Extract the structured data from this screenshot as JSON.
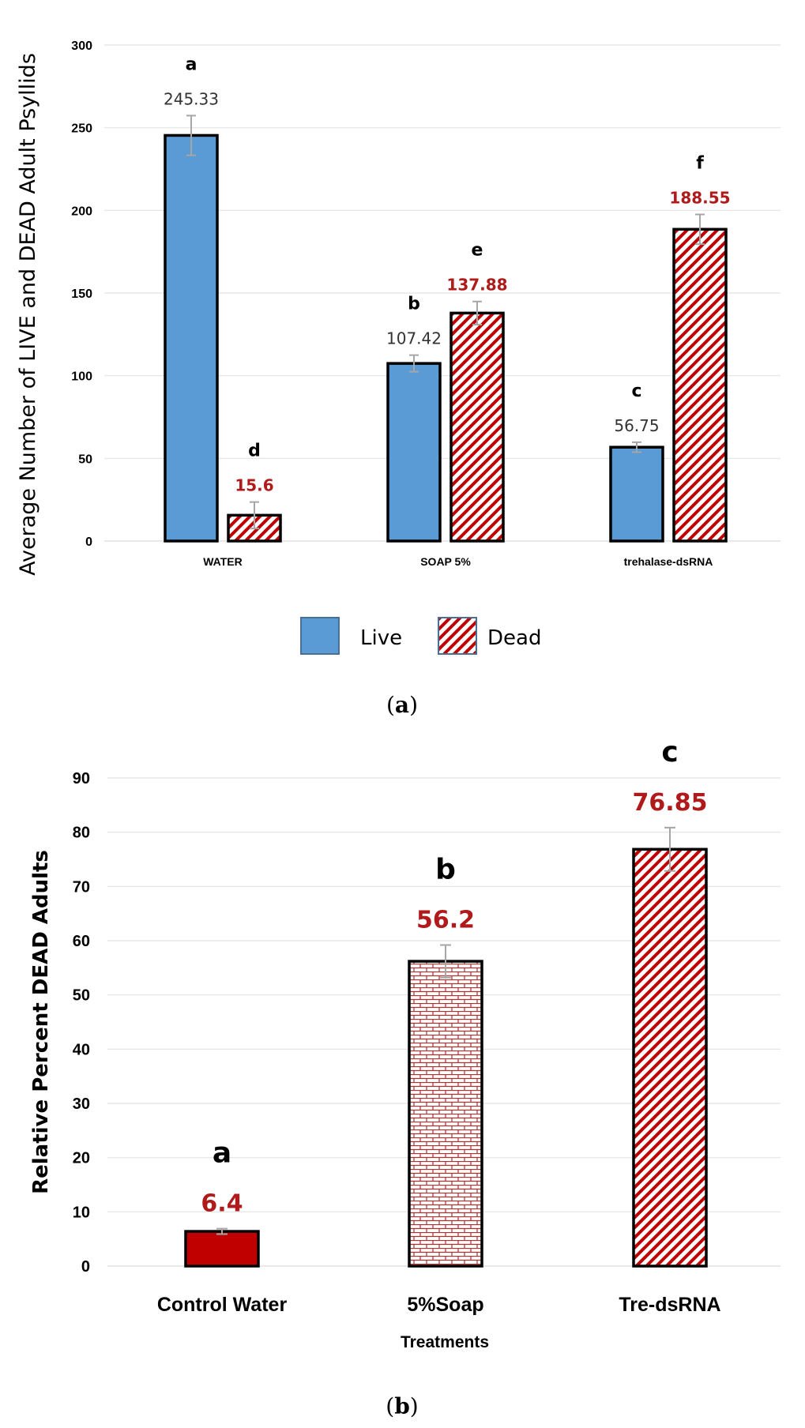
{
  "figure": {
    "caption_a": "(a)",
    "caption_b": "(b)",
    "caption_letter_a": "a",
    "caption_letter_b": "b"
  },
  "colors": {
    "live": "#5b9bd5",
    "dead": "#c00000",
    "control": "#c00000"
  },
  "chart_data": [
    {
      "type": "bar",
      "title": "",
      "xlabel": "",
      "ylabel": "Average Number of LIVE and DEAD Adult Psyllids",
      "ylim": [
        0,
        300
      ],
      "yticks": [
        0,
        50,
        100,
        150,
        200,
        250,
        300
      ],
      "categories": [
        "WATER",
        "SOAP 5%",
        "trehalase-dsRNA"
      ],
      "series": [
        {
          "name": "Live",
          "values": [
            245.33,
            107.42,
            56.75
          ],
          "labels": [
            "245.33",
            "107.42",
            "56.75"
          ],
          "errors": [
            12,
            5,
            3
          ],
          "letters": [
            "a",
            "b",
            "c"
          ]
        },
        {
          "name": "Dead",
          "values": [
            15.6,
            137.88,
            188.55
          ],
          "labels": [
            "15.6",
            "137.88",
            "188.55"
          ],
          "errors": [
            8,
            7,
            9
          ],
          "letters": [
            "d",
            "e",
            "f"
          ]
        }
      ],
      "legend": [
        "Live",
        "Dead"
      ],
      "legend_position": "bottom"
    },
    {
      "type": "bar",
      "title": "",
      "xlabel": "Treatments",
      "ylabel": "Relative  Percent  DEAD Adults",
      "ylim": [
        0,
        90
      ],
      "yticks": [
        0,
        10,
        20,
        30,
        40,
        50,
        60,
        70,
        80,
        90
      ],
      "categories": [
        "Control Water",
        "5%Soap",
        "Tre-dsRNA"
      ],
      "values": [
        6.4,
        56.2,
        76.85
      ],
      "labels": [
        "6.4",
        "56.2",
        "76.85"
      ],
      "errors": [
        0.5,
        3,
        4
      ],
      "letters": [
        "a",
        "b",
        "c"
      ]
    }
  ]
}
